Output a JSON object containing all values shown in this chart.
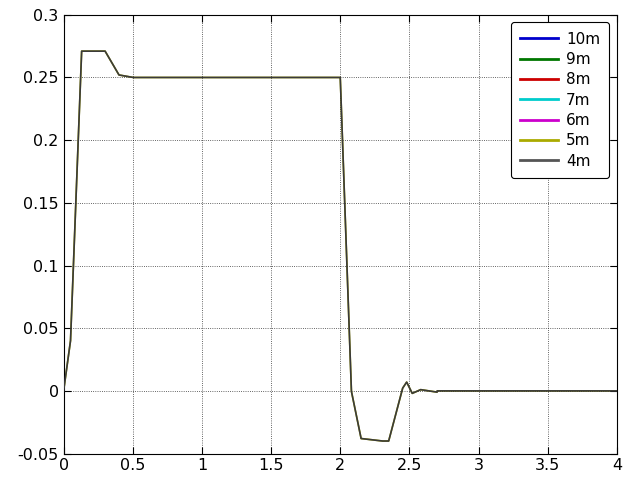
{
  "xlim": [
    0,
    4
  ],
  "ylim": [
    -0.05,
    0.3
  ],
  "xticks": [
    0,
    0.5,
    1.0,
    1.5,
    2.0,
    2.5,
    3.0,
    3.5,
    4.0
  ],
  "yticks": [
    -0.05,
    0,
    0.05,
    0.1,
    0.15,
    0.2,
    0.25,
    0.3
  ],
  "legend_labels": [
    "10m",
    "9m",
    "8m",
    "7m",
    "6m",
    "5m",
    "4m"
  ],
  "legend_colors": [
    "#0000cc",
    "#007700",
    "#cc0000",
    "#00cccc",
    "#cc00cc",
    "#aaaa00",
    "#555555"
  ],
  "main_line_color": "#3a3a3a",
  "yellow_line_color": "#aaaa00",
  "background_color": "#ffffff",
  "grid_color": "#000000",
  "tick_labelsize": 11.5
}
